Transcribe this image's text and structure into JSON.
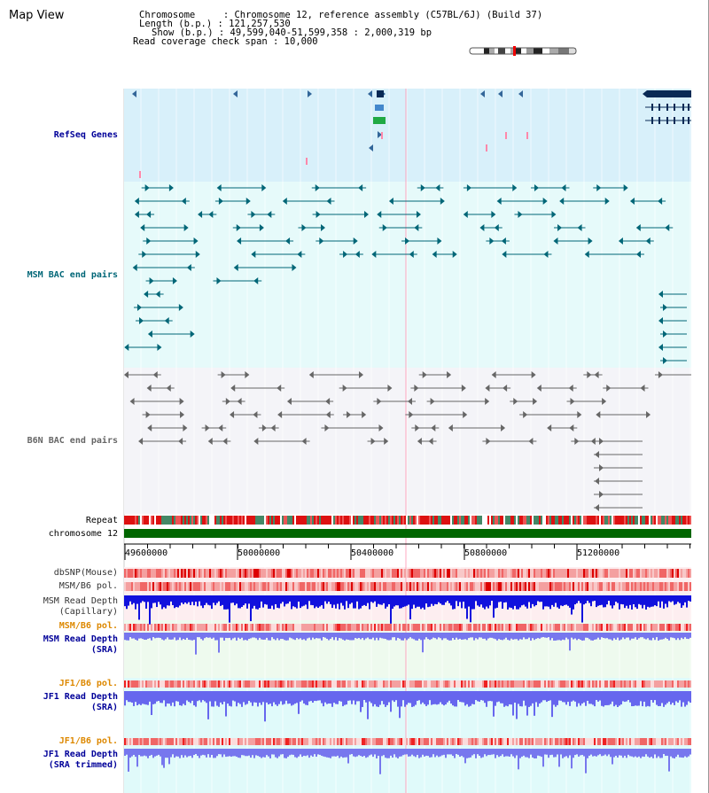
{
  "panel": {
    "title": "Map View"
  },
  "info": {
    "chromosome": "Chromosome     : Chromosome 12, reference assembly (C57BL/6J) (Build 37)",
    "length": "Length (b.p.) : 121,257,530",
    "show": "Show (b.p.) : 49,599,040-51,599,358 : 2,000,319 bp",
    "coverage": "Read coverage check span : 10,000"
  },
  "tracks": {
    "refseq": "RefSeq Genes",
    "msm_bac": "MSM BAC end pairs",
    "b6n_bac": "B6N BAC end pairs",
    "repeat": "Repeat",
    "chromosome": "chromosome 12",
    "dbsnp": "dbSNP(Mouse)",
    "msm_b6_pol": "MSM/B6 pol.",
    "msm_read_depth_1": "MSM Read Depth",
    "msm_read_depth_2": "(Capillary)",
    "msm_b6_pol_sra": "MSM/B6 pol.",
    "msm_sra_1": "MSM Read Depth",
    "msm_sra_2": "(SRA)",
    "jf1_b6_pol": "JF1/B6 pol.",
    "jf1_sra_1": "JF1 Read Depth",
    "jf1_sra_2": "(SRA)",
    "jf1_b6_pol_2": "JF1/B6 pol.",
    "jf1_trim_1": "JF1 Read Depth",
    "jf1_trim_2": "(SRA trimmed)"
  },
  "ruler": {
    "ticks": [
      "49600000",
      "50000000",
      "50400000",
      "50800000",
      "51200000"
    ]
  },
  "colors": {
    "refseq_bg": "#d8f0fa",
    "msm_bg": "#e6fafa",
    "b6n_bg": "#f4f4f8",
    "chromosome": "#006600",
    "gene": "#336699",
    "msm_pair": "#006677",
    "b6n_pair": "#666666",
    "depth_blue": "#1111dd",
    "depth_light": "#7777ee",
    "pol_red": "#ee2222",
    "label_gold": "#dd8800",
    "label_navy": "#000099"
  }
}
